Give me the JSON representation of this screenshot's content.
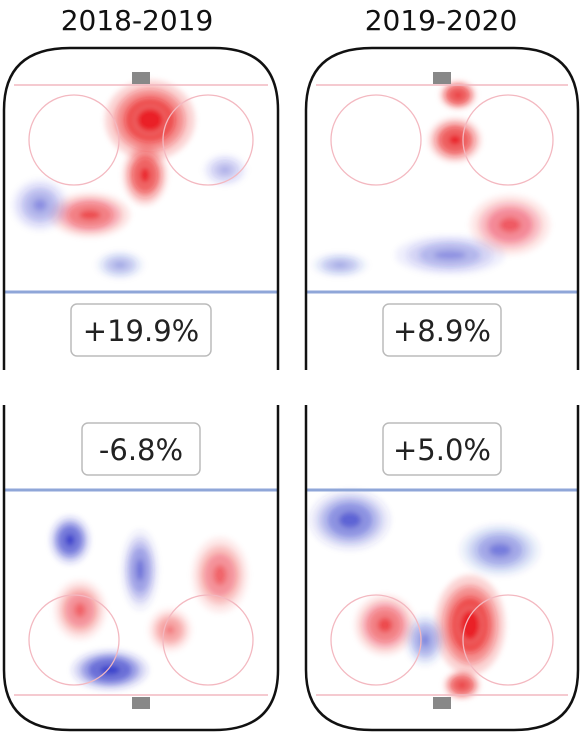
{
  "chart_data": {
    "type": "heatmap",
    "columns": [
      "2018-2019",
      "2019-2020"
    ],
    "panels": [
      {
        "season": "2018-2019",
        "zone": "offense",
        "label": "+19.9%",
        "hotspots": [
          {
            "sign": "pos",
            "intensity": 0.95
          },
          {
            "sign": "pos",
            "intensity": 0.85
          },
          {
            "sign": "pos",
            "intensity": 0.6
          },
          {
            "sign": "neg",
            "intensity": 0.35
          },
          {
            "sign": "neg",
            "intensity": 0.3
          },
          {
            "sign": "neg",
            "intensity": 0.25
          }
        ]
      },
      {
        "season": "2019-2020",
        "zone": "offense",
        "label": "+8.9%",
        "hotspots": [
          {
            "sign": "pos",
            "intensity": 0.95
          },
          {
            "sign": "pos",
            "intensity": 0.9
          },
          {
            "sign": "pos",
            "intensity": 0.5
          },
          {
            "sign": "neg",
            "intensity": 0.35
          },
          {
            "sign": "neg",
            "intensity": 0.3
          }
        ]
      },
      {
        "season": "2018-2019",
        "zone": "defense",
        "label": "-6.8%",
        "hotspots": [
          {
            "sign": "neg",
            "intensity": 0.9
          },
          {
            "sign": "neg",
            "intensity": 0.85
          },
          {
            "sign": "neg",
            "intensity": 0.5
          },
          {
            "sign": "pos",
            "intensity": 0.45
          },
          {
            "sign": "pos",
            "intensity": 0.45
          },
          {
            "sign": "pos",
            "intensity": 0.35
          }
        ]
      },
      {
        "season": "2019-2020",
        "zone": "defense",
        "label": "+5.0%",
        "hotspots": [
          {
            "sign": "pos",
            "intensity": 0.95
          },
          {
            "sign": "pos",
            "intensity": 0.9
          },
          {
            "sign": "pos",
            "intensity": 0.6
          },
          {
            "sign": "neg",
            "intensity": 0.6
          },
          {
            "sign": "neg",
            "intensity": 0.45
          },
          {
            "sign": "neg",
            "intensity": 0.4
          }
        ]
      }
    ]
  },
  "colors": {
    "positive": "#e8121a",
    "negative": "#2a32c8",
    "rink_outline": "#111111",
    "blue_line": "#8fa6d8",
    "goal_line": "#f2b8c0",
    "faceoff_circle": "#f3b8c0",
    "net": "#888888"
  }
}
